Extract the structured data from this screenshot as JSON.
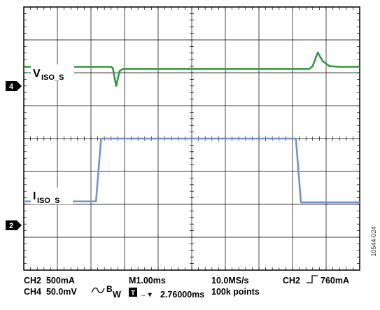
{
  "chart_data": {
    "type": "line",
    "colors": {
      "ch4": "#2f9a3f",
      "ch2": "#7393c8",
      "grid": "#000000"
    },
    "channels": [
      {
        "marker": "4",
        "label_main": "V",
        "label_sub": "ISO_S",
        "color": "#2f9a3f"
      },
      {
        "marker": "2",
        "label_main": "I",
        "label_sub": "ISO_S",
        "color": "#7393c8"
      }
    ],
    "series": [
      {
        "name": "VISO_S",
        "color": "#2f9a3f",
        "x": [
          0,
          2.6,
          2.65,
          2.75,
          2.85,
          2.95,
          3.3,
          8.5,
          8.6,
          8.75,
          8.9,
          9.1,
          9.4,
          10
        ],
        "y": [
          2.18,
          2.18,
          2.14,
          1.6,
          2.05,
          2.12,
          2.12,
          2.12,
          2.2,
          2.62,
          2.35,
          2.2,
          2.18,
          2.18
        ]
      },
      {
        "name": "IISO_S",
        "color": "#7393c8",
        "x": [
          0,
          2.15,
          2.3,
          8.1,
          8.25,
          10
        ],
        "y": [
          -1.91,
          -1.91,
          0.0,
          0.0,
          -1.94,
          -1.94
        ]
      }
    ],
    "grid": {
      "x_divisions": 10,
      "y_divisions": 8
    },
    "footer": {
      "line1": {
        "ch2": "CH2  500mA",
        "time": "M1.00ms",
        "rate": "10.0MS/s",
        "trigger": "CH2",
        "trigger_level": "760mA"
      },
      "line2": {
        "ch4": "CH4  50.0mV",
        "bw_b": "B",
        "bw_w": "W",
        "trig_t": "T",
        "trig_arrow": "→ ▾",
        "trig_pos": "2.76000ms",
        "points": "100k points"
      }
    },
    "figure_id": "10544-024"
  }
}
